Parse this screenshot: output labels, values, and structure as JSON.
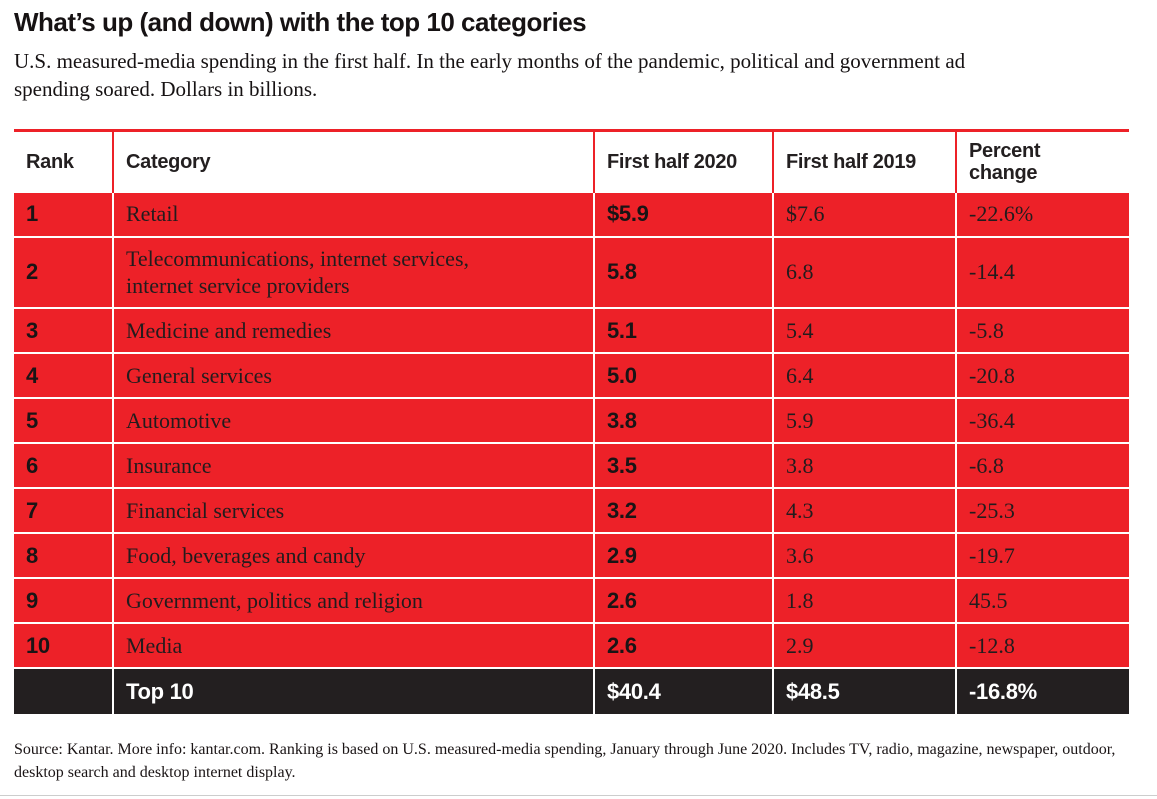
{
  "header": {
    "title": "What’s up (and down) with the top 10 categories",
    "subtitle": "U.S. measured-media spending in the first half. In the early months of the pandemic, political and government ad spending soared. Dollars in billions."
  },
  "table": {
    "columns": {
      "rank": "Rank",
      "category": "Category",
      "fh2020": "First half 2020",
      "fh2019": "First half 2019",
      "pct": "Percent change"
    },
    "rows": [
      {
        "rank": "1",
        "category": "Retail",
        "fh2020": "$5.9",
        "fh2019": "$7.6",
        "pct": "-22.6%"
      },
      {
        "rank": "2",
        "category": "Telecommunications, internet services, internet service providers",
        "fh2020": "5.8",
        "fh2019": "6.8",
        "pct": "-14.4"
      },
      {
        "rank": "3",
        "category": "Medicine and remedies",
        "fh2020": "5.1",
        "fh2019": "5.4",
        "pct": "-5.8"
      },
      {
        "rank": "4",
        "category": "General services",
        "fh2020": "5.0",
        "fh2019": "6.4",
        "pct": "-20.8"
      },
      {
        "rank": "5",
        "category": "Automotive",
        "fh2020": "3.8",
        "fh2019": "5.9",
        "pct": "-36.4"
      },
      {
        "rank": "6",
        "category": "Insurance",
        "fh2020": "3.5",
        "fh2019": "3.8",
        "pct": "-6.8"
      },
      {
        "rank": "7",
        "category": "Financial services",
        "fh2020": "3.2",
        "fh2019": "4.3",
        "pct": "-25.3"
      },
      {
        "rank": "8",
        "category": "Food, beverages and candy",
        "fh2020": "2.9",
        "fh2019": "3.6",
        "pct": "-19.7"
      },
      {
        "rank": "9",
        "category": "Government, politics and religion",
        "fh2020": "2.6",
        "fh2019": "1.8",
        "pct": "45.5"
      },
      {
        "rank": "10",
        "category": "Media",
        "fh2020": "2.6",
        "fh2019": "2.9",
        "pct": "-12.8"
      }
    ],
    "footer": {
      "rank": "",
      "category": "Top 10",
      "fh2020": "$40.4",
      "fh2019": "$48.5",
      "pct": "-16.8%"
    }
  },
  "source": "Source: Kantar. More info: kantar.com. Ranking is based on U.S. measured-media spending, January through June 2020. Includes TV, radio, magazine, newspaper, outdoor, desktop search and desktop internet display.",
  "colors": {
    "red": "#ED2128",
    "row_black": "#231F20",
    "ink": "#231F20"
  },
  "chart_data": {
    "type": "table",
    "title": "What’s up (and down) with the top 10 categories",
    "subtitle": "U.S. measured-media spending in the first half. In the early months of the pandemic, political and government ad spending soared. Dollars in billions.",
    "units": "USD billions",
    "columns": [
      "Rank",
      "Category",
      "First half 2020",
      "First half 2019",
      "Percent change"
    ],
    "rows": [
      [
        1,
        "Retail",
        5.9,
        7.6,
        -22.6
      ],
      [
        2,
        "Telecommunications, internet services, internet service providers",
        5.8,
        6.8,
        -14.4
      ],
      [
        3,
        "Medicine and remedies",
        5.1,
        5.4,
        -5.8
      ],
      [
        4,
        "General services",
        5.0,
        6.4,
        -20.8
      ],
      [
        5,
        "Automotive",
        3.8,
        5.9,
        -36.4
      ],
      [
        6,
        "Insurance",
        3.5,
        3.8,
        -6.8
      ],
      [
        7,
        "Financial services",
        3.2,
        4.3,
        -25.3
      ],
      [
        8,
        "Food, beverages and candy",
        2.9,
        3.6,
        -19.7
      ],
      [
        9,
        "Government, politics and religion",
        2.6,
        1.8,
        45.5
      ],
      [
        10,
        "Media",
        2.6,
        2.9,
        -12.8
      ]
    ],
    "totals": {
      "label": "Top 10",
      "first_half_2020": 40.4,
      "first_half_2019": 48.5,
      "percent_change": -16.8
    },
    "source_note": "Source: Kantar. More info: kantar.com. Ranking is based on U.S. measured-media spending, January through June 2020. Includes TV, radio, magazine, newspaper, outdoor, desktop search and desktop internet display."
  }
}
